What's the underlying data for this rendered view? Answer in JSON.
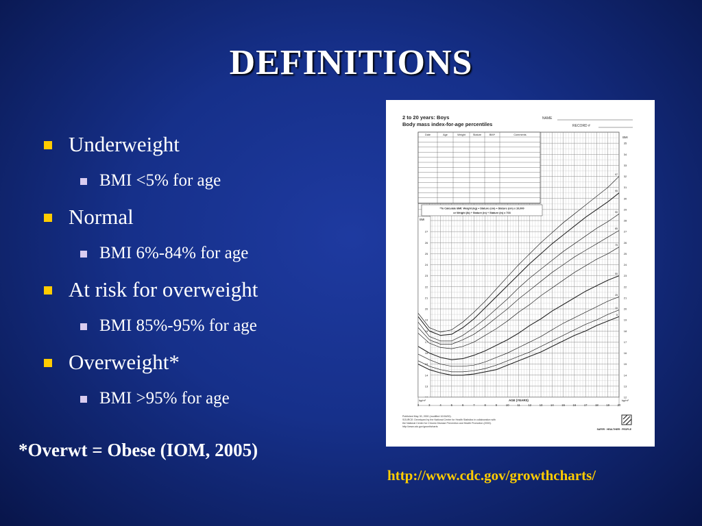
{
  "slide": {
    "title": "DEFINITIONS",
    "bullets": [
      {
        "label": "Underweight",
        "sub": "BMI  <5% for age"
      },
      {
        "label": "Normal",
        "sub": "BMI 6%-84% for age"
      },
      {
        "label": "At risk for overweight",
        "sub": "BMI 85%-95% for age"
      },
      {
        "label": "Overweight*",
        "sub": "BMI >95% for age"
      }
    ],
    "footnote": "*Overwt = Obese (IOM, 2005)",
    "url": "http://www.cdc.gov/growthcharts/",
    "colors": {
      "background": "#16308a",
      "bullet_l1": "#ffcc00",
      "bullet_l2": "#d9ccf0",
      "url": "#ffcc00"
    }
  },
  "growth_chart": {
    "title_line1": "2 to 20 years: Boys",
    "title_line2": "Body mass index-for-age percentiles",
    "name_label": "NAME",
    "record_label": "RECORD #",
    "table_headers": [
      "Date",
      "Age",
      "Weight",
      "Stature",
      "BMI*",
      "Comments"
    ],
    "bmi_label": "BMI",
    "unit_label": "kg/m²",
    "axis_title": "AGE (YEARS)",
    "formula_line1": "*To Calculate BMI: Weight (kg) ÷ Stature (cm) ÷ Stature (cm) x 10,000",
    "formula_line2": "or Weight (lb) ÷ Stature (in) ÷ Stature (in) x 703",
    "age_ticks": [
      2,
      3,
      4,
      5,
      6,
      7,
      8,
      9,
      10,
      11,
      12,
      13,
      14,
      15,
      16,
      17,
      18,
      19,
      20
    ],
    "right_bmi_ticks": [
      12,
      13,
      14,
      15,
      16,
      17,
      18,
      19,
      20,
      21,
      22,
      23,
      24,
      25,
      26,
      27,
      28,
      29,
      30,
      31,
      32,
      33,
      34,
      35
    ],
    "left_bmi_ticks": [
      12,
      13,
      14,
      15,
      16,
      17,
      18,
      19,
      20,
      21,
      22,
      23,
      24,
      25,
      26,
      27
    ],
    "percentiles": [
      {
        "name": "97",
        "values": [
          19.6,
          18.3,
          17.9,
          18.1,
          18.8,
          19.7,
          20.7,
          21.8,
          22.9,
          24.0,
          25.0,
          26.0,
          26.9,
          27.8,
          28.6,
          29.4,
          30.2,
          31.0,
          32.0
        ]
      },
      {
        "name": "95",
        "values": [
          19.3,
          18.0,
          17.6,
          17.7,
          18.3,
          19.1,
          20.1,
          21.1,
          22.1,
          23.1,
          24.1,
          25.0,
          25.9,
          26.7,
          27.5,
          28.3,
          29.0,
          29.7,
          30.5
        ]
      },
      {
        "name": "90",
        "values": [
          18.8,
          17.5,
          17.1,
          17.1,
          17.6,
          18.3,
          19.1,
          20.0,
          20.9,
          21.9,
          22.8,
          23.6,
          24.4,
          25.2,
          25.9,
          26.6,
          27.3,
          27.9,
          28.6
        ]
      },
      {
        "name": "85",
        "values": [
          18.3,
          17.2,
          16.8,
          16.8,
          17.2,
          17.7,
          18.4,
          19.2,
          20.0,
          20.9,
          21.7,
          22.5,
          23.3,
          24.0,
          24.7,
          25.3,
          25.9,
          26.5,
          27.1
        ]
      },
      {
        "name": "75",
        "values": [
          17.8,
          16.9,
          16.5,
          16.4,
          16.6,
          17.0,
          17.6,
          18.2,
          18.9,
          19.7,
          20.4,
          21.2,
          21.9,
          22.6,
          23.3,
          23.9,
          24.5,
          25.0,
          25.6
        ]
      },
      {
        "name": "50",
        "values": [
          16.6,
          16.0,
          15.6,
          15.4,
          15.5,
          15.8,
          16.2,
          16.7,
          17.2,
          17.8,
          18.5,
          19.1,
          19.8,
          20.4,
          21.0,
          21.6,
          22.1,
          22.6,
          23.0
        ]
      },
      {
        "name": "25",
        "values": [
          15.9,
          15.4,
          15.0,
          14.8,
          14.8,
          14.9,
          15.2,
          15.6,
          16.0,
          16.5,
          17.0,
          17.5,
          18.1,
          18.7,
          19.2,
          19.7,
          20.2,
          20.7,
          21.1
        ]
      },
      {
        "name": "10",
        "values": [
          15.3,
          14.8,
          14.5,
          14.3,
          14.3,
          14.4,
          14.6,
          14.9,
          15.3,
          15.7,
          16.1,
          16.6,
          17.1,
          17.6,
          18.1,
          18.6,
          19.0,
          19.5,
          19.9
        ]
      },
      {
        "name": "5",
        "values": [
          15.0,
          14.5,
          14.2,
          14.0,
          14.0,
          14.1,
          14.3,
          14.5,
          14.9,
          15.3,
          15.7,
          16.1,
          16.6,
          17.1,
          17.6,
          18.0,
          18.5,
          18.9,
          19.3
        ]
      }
    ],
    "footer_line1": "Published May 30, 2000 (modified 10/16/00).",
    "footer_line2": "SOURCE: Developed by the National Center for Health Statistics in collaboration with",
    "footer_line3": "the National Center for Chronic Disease Prevention and Health Promotion (2000).",
    "footer_line4": "http://www.cdc.gov/growthcharts",
    "footer_slogan": "SAFER · HEALTHIER · PEOPLE"
  }
}
